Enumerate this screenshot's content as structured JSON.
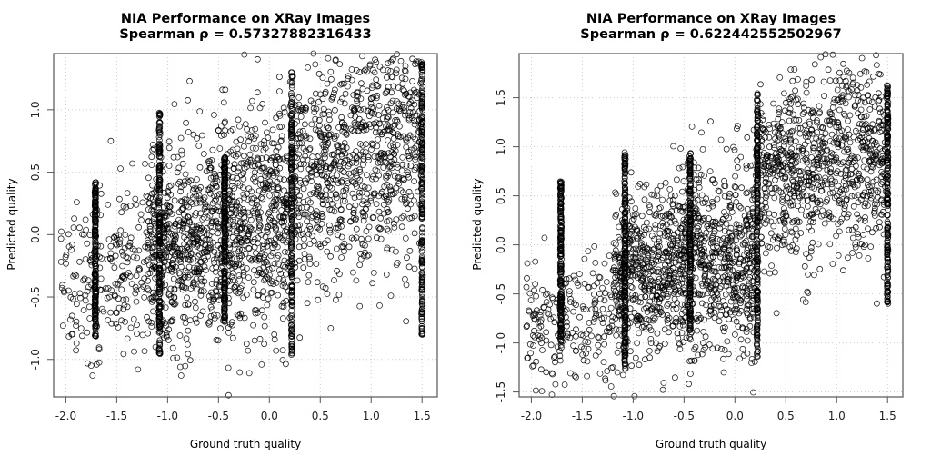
{
  "chart_data": [
    {
      "type": "scatter",
      "title": "NIA Performance on XRay Images",
      "subtitle": "Spearman ρ =  0.57327882316433",
      "spearman_rho": 0.57327882316433,
      "xlabel": "Ground truth quality",
      "ylabel": "Predicted quality",
      "xlim": [
        -2.12,
        1.65
      ],
      "ylim": [
        -1.3,
        1.45
      ],
      "xticks": [
        -2.0,
        -1.5,
        -1.0,
        -0.5,
        0.0,
        0.5,
        1.0,
        1.5
      ],
      "xtick_labels": [
        "-2.0",
        "-1.5",
        "-1.0",
        "-0.5",
        "0.0",
        "0.5",
        "1.0",
        "1.5"
      ],
      "yticks": [
        -1.0,
        -0.5,
        0.0,
        0.5,
        1.0
      ],
      "ytick_labels": [
        "-1.0",
        "-0.5",
        "0.0",
        "0.5",
        "1.0"
      ],
      "grid": true,
      "legend": null,
      "marker": "open-circle",
      "dense_columns": [
        {
          "x": -1.71,
          "y_range": [
            -0.82,
            0.42
          ]
        },
        {
          "x": -1.08,
          "y_range": [
            -0.98,
            1.0
          ]
        },
        {
          "x": -0.44,
          "y_range": [
            -0.7,
            0.62
          ]
        },
        {
          "x": 0.22,
          "y_range": [
            -0.97,
            1.3
          ]
        },
        {
          "x": 1.5,
          "y_range": [
            -0.85,
            1.38
          ]
        }
      ],
      "scatter_cloud": [
        {
          "x_range": [
            -2.05,
            -1.2
          ],
          "y_center": -0.35,
          "y_spread": 0.35
        },
        {
          "x_range": [
            -1.2,
            -0.5
          ],
          "y_center": -0.1,
          "y_spread": 0.4
        },
        {
          "x_range": [
            -0.5,
            0.2
          ],
          "y_center": 0.05,
          "y_spread": 0.45
        },
        {
          "x_range": [
            0.2,
            1.5
          ],
          "y_center": 0.55,
          "y_spread": 0.45
        }
      ]
    },
    {
      "type": "scatter",
      "title": "NIA Performance on XRay Images",
      "subtitle": "Spearman ρ =  0.622442552502967",
      "spearman_rho": 0.622442552502967,
      "xlabel": "Ground truth quality",
      "ylabel": "Predicted quality",
      "xlim": [
        -2.12,
        1.65
      ],
      "ylim": [
        -1.55,
        1.95
      ],
      "xticks": [
        -2.0,
        -1.5,
        -1.0,
        -0.5,
        0.0,
        0.5,
        1.0,
        1.5
      ],
      "xtick_labels": [
        "-2.0",
        "-1.5",
        "-1.0",
        "-0.5",
        "0.0",
        "0.5",
        "1.0",
        "1.5"
      ],
      "yticks": [
        -1.5,
        -1.0,
        -0.5,
        0.0,
        0.5,
        1.0,
        1.5
      ],
      "ytick_labels": [
        "-1.5",
        "-1.0",
        "-0.5",
        "0.0",
        "0.5",
        "1.0",
        "1.5"
      ],
      "grid": true,
      "legend": null,
      "marker": "open-circle",
      "dense_columns": [
        {
          "x": -1.71,
          "y_range": [
            -1.0,
            0.65
          ]
        },
        {
          "x": -1.08,
          "y_range": [
            -1.28,
            0.95
          ]
        },
        {
          "x": -0.44,
          "y_range": [
            -0.95,
            0.95
          ]
        },
        {
          "x": 0.22,
          "y_range": [
            -1.15,
            1.55
          ]
        },
        {
          "x": 1.5,
          "y_range": [
            -0.6,
            1.65
          ]
        }
      ],
      "scatter_cloud": [
        {
          "x_range": [
            -2.05,
            -1.2
          ],
          "y_center": -0.85,
          "y_spread": 0.3
        },
        {
          "x_range": [
            -1.2,
            -0.5
          ],
          "y_center": -0.35,
          "y_spread": 0.45
        },
        {
          "x_range": [
            -0.5,
            0.2
          ],
          "y_center": -0.2,
          "y_spread": 0.5
        },
        {
          "x_range": [
            0.2,
            1.5
          ],
          "y_center": 0.75,
          "y_spread": 0.5
        }
      ]
    }
  ],
  "panels": [
    {
      "title_line1": "NIA Performance on XRay Images",
      "title_line2": "Spearman ρ =  0.57327882316433",
      "xlabel": "Ground truth quality",
      "ylabel": "Predicted quality"
    },
    {
      "title_line1": "NIA Performance on XRay Images",
      "title_line2": "Spearman ρ =  0.622442552502967",
      "xlabel": "Ground truth quality",
      "ylabel": "Predicted quality"
    }
  ],
  "colors": {
    "axis": "#555555",
    "grid": "#cccccc",
    "marker": "#000000",
    "background": "#ffffff"
  }
}
